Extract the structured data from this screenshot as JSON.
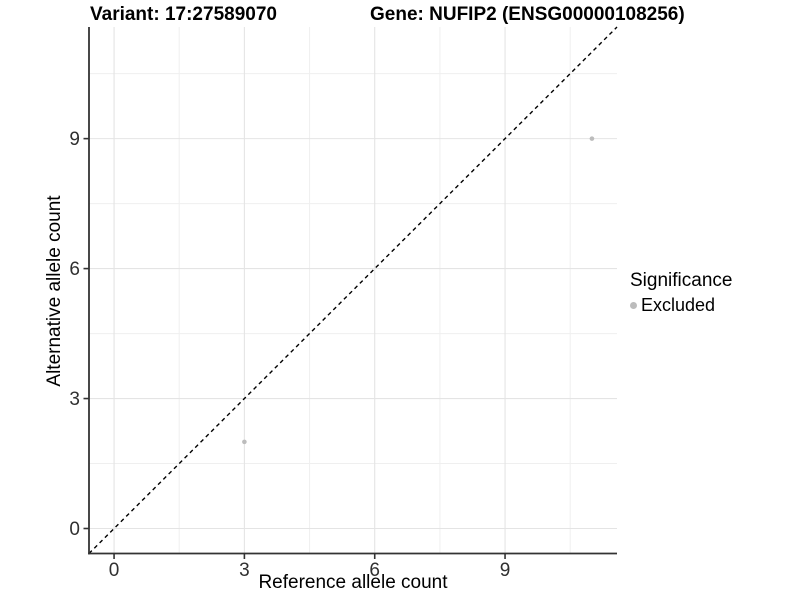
{
  "header": {
    "variant_label": "Variant: 17:27589070",
    "gene_label": "Gene: NUFIP2 (ENSG00000108256)"
  },
  "axes": {
    "x_label": "Reference allele count",
    "y_label": "Alternative allele count"
  },
  "legend": {
    "title": "Significance",
    "items": [
      {
        "label": "Excluded",
        "color": "#bcbcbc",
        "marker": "dot-icon"
      }
    ]
  },
  "colors": {
    "background": "#ffffff",
    "axis_line": "#333333",
    "tick_label": "#303030",
    "grid_major": "#e4e4e4",
    "grid_minor": "#efefef",
    "point": "#bcbcbc",
    "identity_line": "#000000",
    "text": "#000000"
  },
  "chart_data": {
    "type": "scatter",
    "title": "Variant: 17:27589070   Gene: NUFIP2 (ENSG00000108256)",
    "xlabel": "Reference allele count",
    "ylabel": "Alternative allele count",
    "xlim": [
      -0.577,
      11.577
    ],
    "ylim": [
      -0.577,
      11.577
    ],
    "x_ticks": [
      0,
      3,
      6,
      9
    ],
    "y_ticks": [
      0,
      3,
      6,
      9
    ],
    "x_minor_ticks": [
      1.5,
      4.5,
      7.5,
      10.5
    ],
    "y_minor_ticks": [
      1.5,
      4.5,
      7.5,
      10.5
    ],
    "grid": "major+minor",
    "legend_position": "right",
    "series": [
      {
        "name": "Excluded",
        "type": "scatter",
        "color": "#bcbcbc",
        "points": [
          [
            3,
            2
          ],
          [
            11,
            9
          ]
        ]
      }
    ],
    "reference_line": {
      "kind": "identity",
      "equation": "y = x",
      "style": "dashed",
      "color": "#000000"
    }
  }
}
